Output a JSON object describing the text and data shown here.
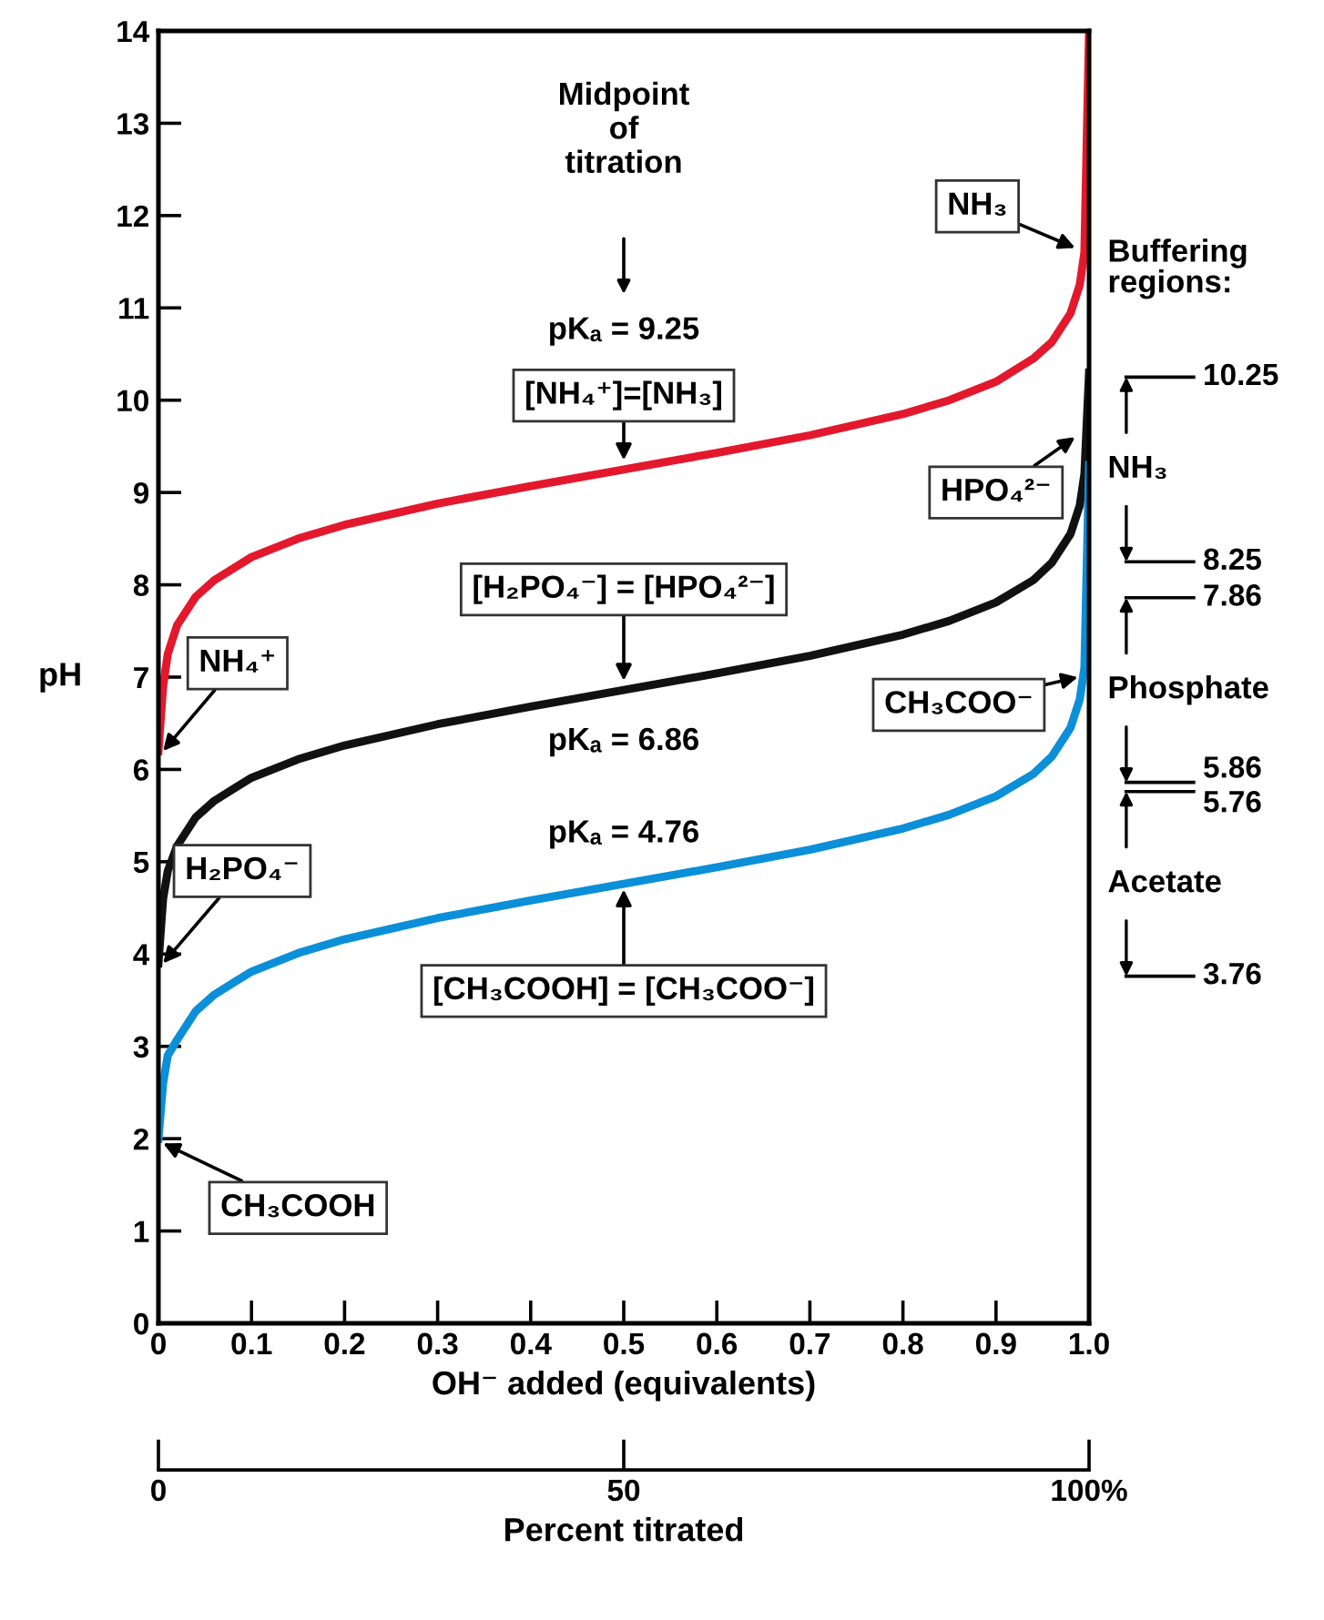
{
  "chart_data": {
    "type": "line",
    "xlabel": "OH⁻ added (equivalents)",
    "ylabel": "pH",
    "x2label": "Percent titrated",
    "xlim": [
      0,
      1
    ],
    "xticks": [
      0,
      0.1,
      0.2,
      0.3,
      0.4,
      0.5,
      0.6,
      0.7,
      0.8,
      0.9,
      {
        "value": 1,
        "label": "1.0"
      }
    ],
    "ylim": [
      0,
      14
    ],
    "yticks": [
      0,
      1,
      2,
      3,
      4,
      5,
      6,
      7,
      8,
      9,
      10,
      11,
      12,
      13,
      14
    ],
    "y2lim": [
      0,
      14
    ],
    "y2ticks": [
      10.25,
      8.25,
      7.86,
      5.86,
      5.76,
      3.76
    ],
    "x2lim": [
      0,
      100
    ],
    "x2ticks": [
      0,
      50,
      {
        "value": 100,
        "label": "100%"
      }
    ],
    "grid": false,
    "legend": false,
    "marker": "none",
    "line_style": "solid",
    "x": [
      0,
      0.005,
      0.01,
      0.02,
      0.04,
      0.06,
      0.1,
      0.15,
      0.2,
      0.3,
      0.4,
      0.5,
      0.6,
      0.7,
      0.8,
      0.85,
      0.9,
      0.94,
      0.96,
      0.98,
      0.99,
      0.995,
      1.0
    ],
    "series": [
      {
        "color": "#e3182d",
        "values": [
          6.2,
          6.9,
          7.25,
          7.56,
          7.87,
          8.05,
          8.3,
          8.5,
          8.65,
          8.88,
          9.07,
          9.25,
          9.43,
          9.62,
          9.85,
          10.0,
          10.2,
          10.45,
          10.63,
          10.94,
          11.25,
          11.6,
          14
        ]
      },
      {
        "color": "#111111",
        "values": [
          3.9,
          4.6,
          4.9,
          5.17,
          5.48,
          5.66,
          5.91,
          6.11,
          6.26,
          6.49,
          6.68,
          6.86,
          7.04,
          7.23,
          7.46,
          7.61,
          7.81,
          8.05,
          8.24,
          8.55,
          8.86,
          9.2,
          10.3
        ]
      },
      {
        "color": "#0a8fd8",
        "values": [
          2.0,
          2.6,
          2.9,
          3.07,
          3.38,
          3.56,
          3.81,
          4.01,
          4.16,
          4.39,
          4.58,
          4.76,
          4.94,
          5.13,
          5.36,
          5.51,
          5.71,
          5.95,
          6.14,
          6.45,
          6.76,
          7.1,
          9.3
        ]
      }
    ],
    "annotations": [
      "Midpoint\nof\ntitration",
      "pKₐ = 9.25",
      {
        "text": "[NH₄⁺]=[NH₃]",
        "x": 0.5,
        "y": 9.25
      },
      {
        "text": "NH₃",
        "x": 1.0,
        "y": 11.7
      },
      {
        "text": "NH₄⁺",
        "x": 0,
        "y": 6.2
      },
      {
        "text": "[H₂PO₄⁻] = [HPO₄²⁻]",
        "x": 0.5,
        "y": 6.86
      },
      {
        "text": "pKₐ = 6.86",
        "x": 0.5,
        "y": 6.86
      },
      {
        "text": "HPO₄²⁻",
        "x": 1.0,
        "y": 9.6
      },
      {
        "text": "H₂PO₄⁻",
        "x": 0,
        "y": 3.9
      },
      {
        "text": "pKₐ = 4.76",
        "x": 0.5,
        "y": 4.76
      },
      {
        "text": "[CH₃COOH] = [CH₃COO⁻]",
        "x": 0.5,
        "y": 4.76
      },
      {
        "text": "CH₃COO⁻",
        "x": 1.0,
        "y": 7.0
      },
      {
        "text": "CH₃COOH",
        "x": 0,
        "y": 2.0
      },
      "Buffering\nregions:",
      "NH₃",
      "Phosphate",
      "Acetate"
    ]
  }
}
